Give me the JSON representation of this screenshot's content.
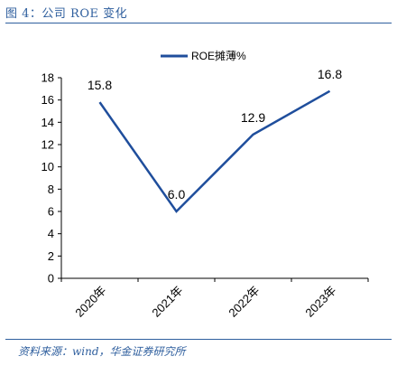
{
  "figure": {
    "title": "图 4：公司 ROE 变化",
    "source": "资料来源：wind，华金证券研究所"
  },
  "chart_data": {
    "type": "line",
    "title": "",
    "xlabel": "",
    "ylabel": "",
    "categories": [
      "2020年",
      "2021年",
      "2022年",
      "2023年"
    ],
    "series": [
      {
        "name": "ROE摊薄%",
        "values": [
          15.8,
          6.0,
          12.9,
          16.8
        ],
        "labels": [
          "15.8",
          "6.0",
          "12.9",
          "16.8"
        ],
        "color": "#1f4e9c"
      }
    ],
    "ylim": [
      0,
      18
    ],
    "yticks": [
      "0",
      "2",
      "4",
      "6",
      "8",
      "10",
      "12",
      "14",
      "16",
      "18"
    ],
    "grid": false,
    "legend_position": "top-center"
  }
}
